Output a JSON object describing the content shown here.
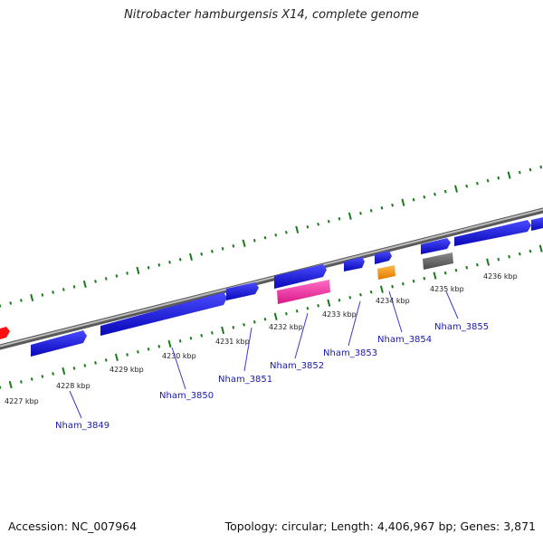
{
  "title": "Nitrobacter hamburgensis X14, complete genome",
  "footer": {
    "accession": "Accession: NC_007964",
    "summary": "Topology: circular; Length: 4,406,967 bp; Genes: 3,871"
  },
  "track": {
    "scale_labels": [
      "4227 kbp",
      "4228 kbp",
      "4229 kbp",
      "4230 kbp",
      "4231 kbp",
      "4232 kbp",
      "4233 kbp",
      "4234 kbp",
      "4235 kbp",
      "4236 kbp"
    ]
  },
  "gene_labels": [
    "Nham_3849",
    "Nham_3850",
    "Nham_3851",
    "Nham_3852",
    "Nham_3853",
    "Nham_3854",
    "Nham_3855"
  ],
  "colors": {
    "gene": "#1010e0",
    "pink": "#ff2fa8",
    "orange": "#ff9900",
    "gray": "#666666",
    "red": "#ff0000",
    "tick": "#1a7a1a",
    "backbone": "#888888",
    "label": "#1a1aaa"
  }
}
